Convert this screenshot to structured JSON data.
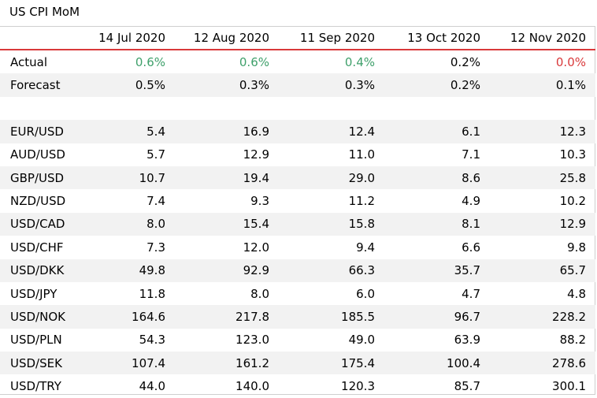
{
  "title": "US CPI MoM",
  "columns": [
    "14 Jul 2020",
    "12 Aug 2020",
    "11 Sep 2020",
    "13 Oct 2020",
    "12 Nov 2020"
  ],
  "actual": {
    "label": "Actual",
    "values": [
      "0.6%",
      "0.6%",
      "0.4%",
      "0.2%",
      "0.0%"
    ],
    "states": [
      "pos",
      "pos",
      "pos",
      "neutral",
      "neg"
    ]
  },
  "forecast": {
    "label": "Forecast",
    "values": [
      "0.5%",
      "0.3%",
      "0.3%",
      "0.2%",
      "0.1%"
    ]
  },
  "pairs": [
    {
      "label": "EUR/USD",
      "values": [
        "5.4",
        "16.9",
        "12.4",
        "6.1",
        "12.3"
      ]
    },
    {
      "label": "AUD/USD",
      "values": [
        "5.7",
        "12.9",
        "11.0",
        "7.1",
        "10.3"
      ]
    },
    {
      "label": "GBP/USD",
      "values": [
        "10.7",
        "19.4",
        "29.0",
        "8.6",
        "25.8"
      ]
    },
    {
      "label": "NZD/USD",
      "values": [
        "7.4",
        "9.3",
        "11.2",
        "4.9",
        "10.2"
      ]
    },
    {
      "label": "USD/CAD",
      "values": [
        "8.0",
        "15.4",
        "15.8",
        "8.1",
        "12.9"
      ]
    },
    {
      "label": "USD/CHF",
      "values": [
        "7.3",
        "12.0",
        "9.4",
        "6.6",
        "9.8"
      ]
    },
    {
      "label": "USD/DKK",
      "values": [
        "49.8",
        "92.9",
        "66.3",
        "35.7",
        "65.7"
      ]
    },
    {
      "label": "USD/JPY",
      "values": [
        "11.8",
        "8.0",
        "6.0",
        "4.7",
        "4.8"
      ]
    },
    {
      "label": "USD/NOK",
      "values": [
        "164.6",
        "217.8",
        "185.5",
        "96.7",
        "228.2"
      ]
    },
    {
      "label": "USD/PLN",
      "values": [
        "54.3",
        "123.0",
        "49.0",
        "63.9",
        "88.2"
      ]
    },
    {
      "label": "USD/SEK",
      "values": [
        "107.4",
        "161.2",
        "175.4",
        "100.4",
        "278.6"
      ]
    },
    {
      "label": "USD/TRY",
      "values": [
        "44.0",
        "140.0",
        "120.3",
        "85.7",
        "300.1"
      ]
    }
  ],
  "colors": {
    "positive": "#3fa06b",
    "negative": "#d9393b",
    "header_rule": "#d9393b",
    "band": "#f2f2f2"
  }
}
